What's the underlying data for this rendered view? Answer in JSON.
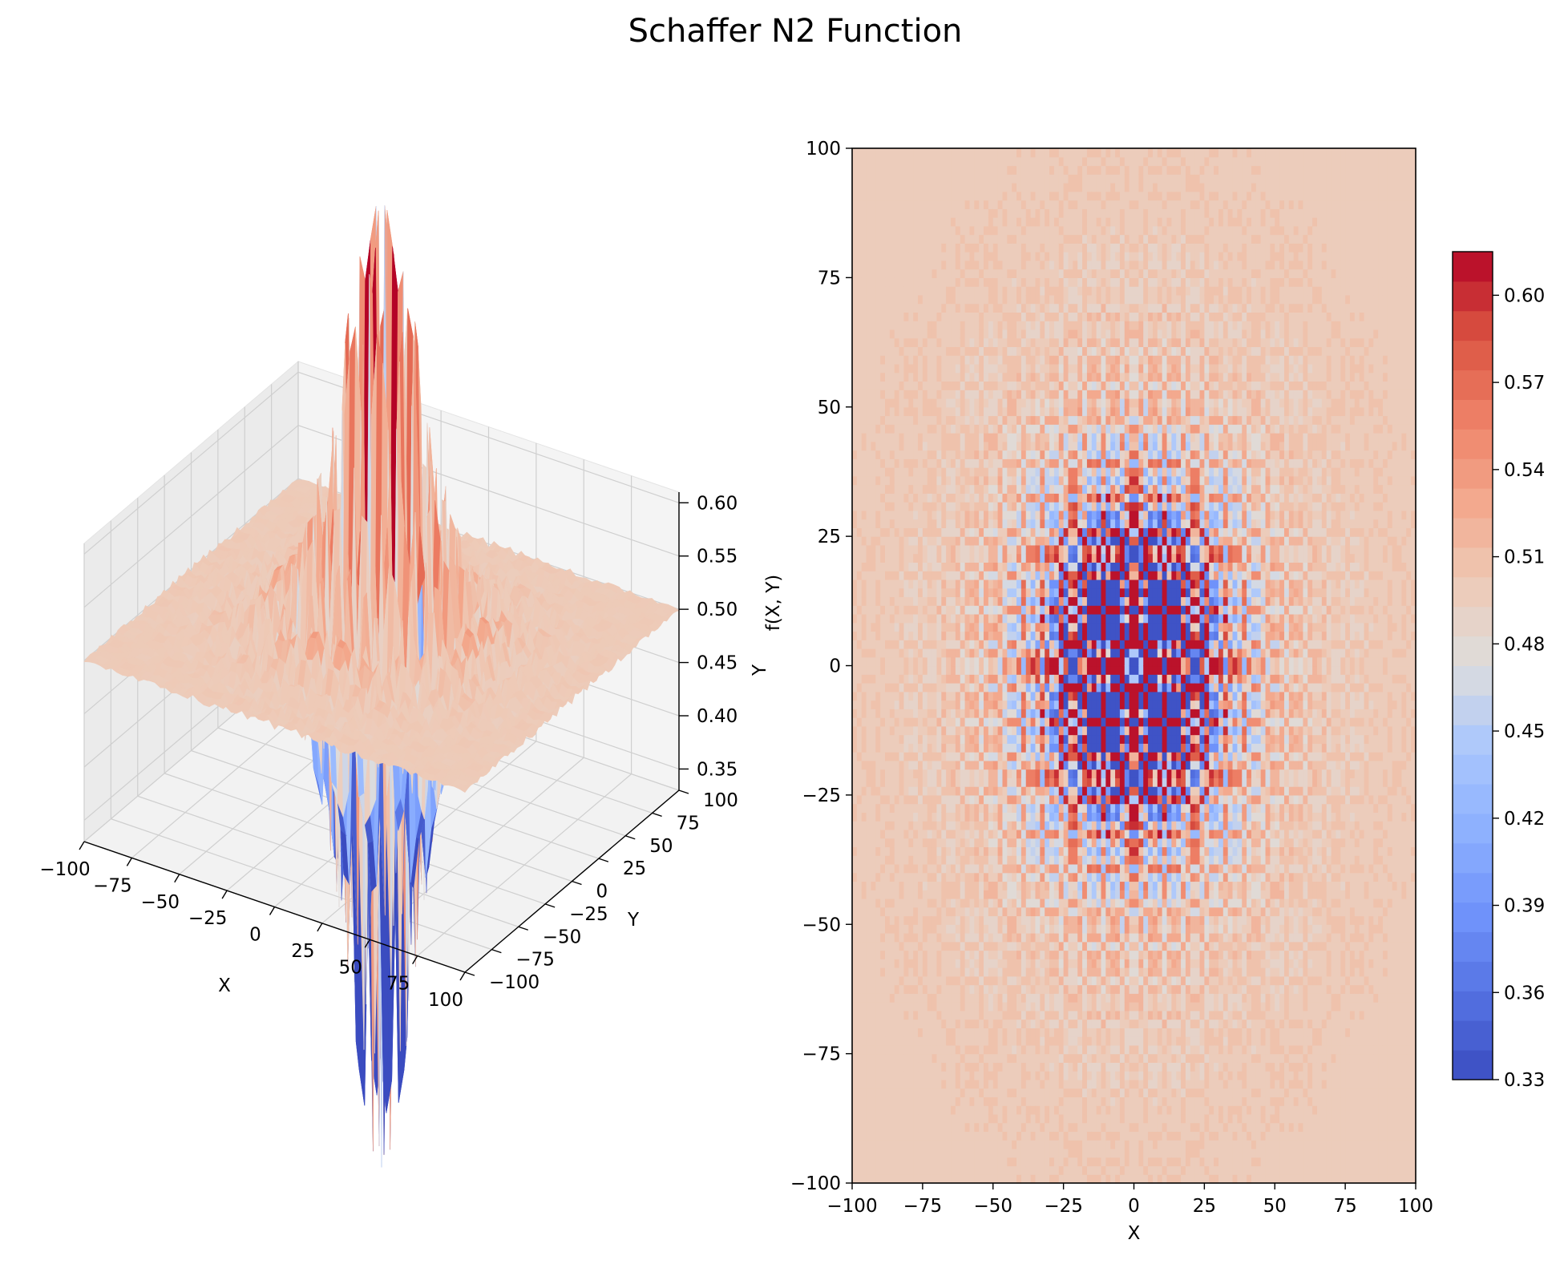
{
  "chart_data": [
    {
      "type": "surface3d",
      "title": "Schaffer N2 Function",
      "function": "0.5 + (sin^2(x^2 - y^2) - 0.5) / (1 + 0.001 (x^2 + y^2))^2",
      "colormap": "coolwarm",
      "xlabel": "X",
      "ylabel": "Y",
      "zlabel": "f(X, Y)",
      "xlim": [
        -100,
        100
      ],
      "ylim": [
        -100,
        100
      ],
      "zlim": [
        0.33,
        0.61
      ],
      "x_ticks": [
        "−100",
        "−75",
        "−50",
        "−25",
        "0",
        "25",
        "50",
        "75",
        "100"
      ],
      "y_ticks": [
        "−100",
        "−75",
        "−50",
        "−25",
        "0",
        "25",
        "50",
        "75",
        "100"
      ],
      "z_ticks": [
        "0.35",
        "0.40",
        "0.45",
        "0.50",
        "0.55",
        "0.60"
      ],
      "grid": true
    },
    {
      "type": "heatmap",
      "style": "filled-contour",
      "function": "0.5 + (sin^2(x^2 - y^2) - 0.5) / (1 + 0.001 (x^2 + y^2))^2",
      "colormap": "coolwarm",
      "xlabel": "X",
      "ylabel": "",
      "xlim": [
        -100,
        100
      ],
      "ylim": [
        -100,
        100
      ],
      "x_ticks": [
        "−100",
        "−75",
        "−50",
        "−25",
        "0",
        "25",
        "50",
        "75",
        "100"
      ],
      "y_ticks": [
        "−100",
        "−75",
        "−50",
        "−25",
        "0",
        "25",
        "50",
        "75",
        "100"
      ],
      "colorbar": {
        "range": [
          0.33,
          0.615
        ],
        "ticks": [
          "0.33",
          "0.36",
          "0.39",
          "0.42",
          "0.45",
          "0.48",
          "0.51",
          "0.54",
          "0.57",
          "0.60"
        ],
        "placement": "right"
      }
    }
  ]
}
